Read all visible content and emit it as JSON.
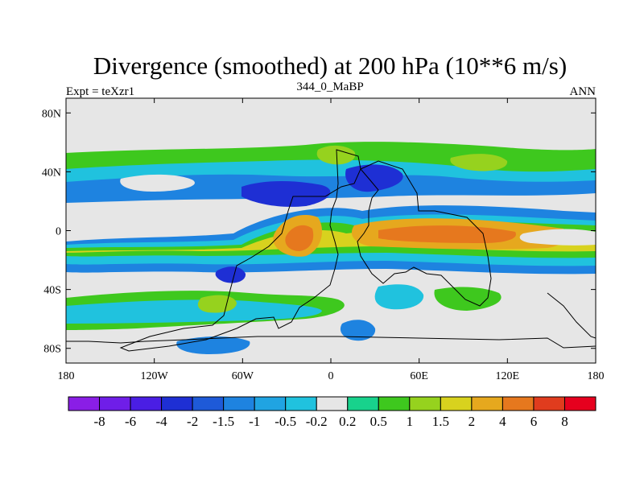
{
  "chart_data": {
    "type": "heatmap",
    "title": "Divergence (smoothed) at 200 hPa (10**6 m/s)",
    "left_label": "Expt = teXzr1",
    "center_label": "344_0_MaBP",
    "right_label": "ANN",
    "x_ticks": [
      {
        "lon": -180,
        "label": "180"
      },
      {
        "lon": -120,
        "label": "120W"
      },
      {
        "lon": -60,
        "label": "60W"
      },
      {
        "lon": 0,
        "label": "0"
      },
      {
        "lon": 60,
        "label": "60E"
      },
      {
        "lon": 120,
        "label": "120E"
      },
      {
        "lon": 180,
        "label": "180"
      }
    ],
    "y_ticks": [
      {
        "lat": 80,
        "label": "80N"
      },
      {
        "lat": 40,
        "label": "40N"
      },
      {
        "lat": 0,
        "label": "0"
      },
      {
        "lat": -40,
        "label": "40S"
      },
      {
        "lat": -80,
        "label": "80S"
      }
    ],
    "xlim": [
      -180,
      180
    ],
    "ylim": [
      -90,
      90
    ],
    "colorbar": {
      "labels": [
        "-8",
        "-6",
        "-4",
        "-2",
        "-1.5",
        "-1",
        "-0.5",
        "-0.2",
        "0.2",
        "0.5",
        "1",
        "1.5",
        "2",
        "4",
        "6",
        "8"
      ],
      "colors": [
        "#8a1ee6",
        "#6f1ee8",
        "#4a1ee4",
        "#1e2fd4",
        "#1e5ad8",
        "#1e83e0",
        "#20a4e2",
        "#20c2de",
        "#e6e6e6",
        "#18d28c",
        "#3ec81e",
        "#96d21e",
        "#d8d21e",
        "#e6a81e",
        "#e6781e",
        "#e03c1e",
        "#e6001e"
      ]
    },
    "field_blobs": [
      {
        "lon": -20,
        "lat": 5,
        "rlon": 14,
        "rlat": 14,
        "value": 4.5
      },
      {
        "lon": 65,
        "lat": -2,
        "rlon": 55,
        "rlat": 9,
        "value": 3.5
      },
      {
        "lon": -45,
        "lat": 30,
        "rlon": 40,
        "rlat": 10,
        "value": -3.5
      },
      {
        "lon": 30,
        "lat": 40,
        "rlon": 20,
        "rlat": 12,
        "value": -3
      },
      {
        "lon": -100,
        "lat": -20,
        "rlon": 70,
        "rlat": 7,
        "value": 1.2
      },
      {
        "lon": 140,
        "lat": 22,
        "rlon": 40,
        "rlat": 8,
        "value": -1.2
      },
      {
        "lon": -130,
        "lat": 40,
        "rlon": 60,
        "rlat": 8,
        "value": 0.8
      },
      {
        "lon": -10,
        "lat": 52,
        "rlon": 35,
        "rlat": 8,
        "value": 1.5
      }
    ]
  }
}
